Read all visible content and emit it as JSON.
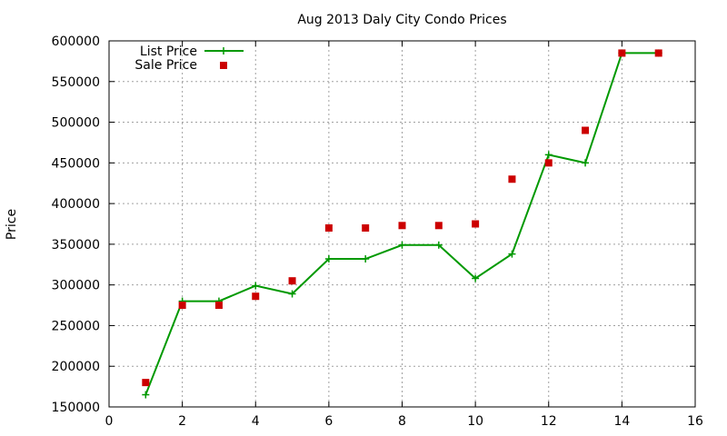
{
  "chart_data": {
    "type": "line",
    "title": "Aug 2013 Daly City Condo Prices",
    "xlabel": "",
    "ylabel": "Price",
    "xlim": [
      0,
      16
    ],
    "ylim": [
      150000,
      600000
    ],
    "x_ticks": [
      "0",
      "2",
      "4",
      "6",
      "8",
      "10",
      "12",
      "14",
      "16"
    ],
    "y_ticks": [
      "150000",
      "200000",
      "250000",
      "300000",
      "350000",
      "400000",
      "450000",
      "500000",
      "550000",
      "600000"
    ],
    "grid": true,
    "legend_position": "top-left",
    "series": [
      {
        "name": "List Price",
        "style": "linespoints",
        "marker": "plus",
        "color": "#009900",
        "points": [
          [
            1,
            165000
          ],
          [
            2,
            280000
          ],
          [
            3,
            280000
          ],
          [
            4,
            299000
          ],
          [
            5,
            289000
          ],
          [
            6,
            332000
          ],
          [
            7,
            332000
          ],
          [
            8,
            349000
          ],
          [
            9,
            349000
          ],
          [
            10,
            308000
          ],
          [
            11,
            338000
          ],
          [
            12,
            460000
          ],
          [
            13,
            450000
          ],
          [
            14,
            585000
          ],
          [
            15,
            585000
          ]
        ]
      },
      {
        "name": "Sale Price",
        "style": "points",
        "marker": "square",
        "color": "#cc0000",
        "points": [
          [
            1,
            180000
          ],
          [
            2,
            275000
          ],
          [
            3,
            275000
          ],
          [
            4,
            286000
          ],
          [
            5,
            305000
          ],
          [
            6,
            370000
          ],
          [
            7,
            370000
          ],
          [
            8,
            373000
          ],
          [
            9,
            373000
          ],
          [
            10,
            375000
          ],
          [
            11,
            430000
          ],
          [
            12,
            450000
          ],
          [
            13,
            490000
          ],
          [
            14,
            585000
          ],
          [
            15,
            585000
          ]
        ]
      }
    ]
  }
}
